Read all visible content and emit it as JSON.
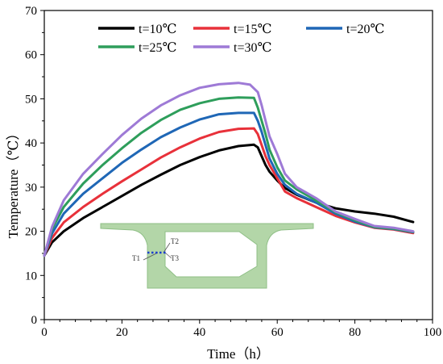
{
  "chart_data": {
    "type": "line",
    "title": "",
    "xlabel": "Time（h）",
    "ylabel": "Temperature（℃）",
    "xlim": [
      0,
      100
    ],
    "ylim": [
      0,
      70
    ],
    "xticks": [
      0,
      20,
      40,
      60,
      80,
      100
    ],
    "yticks": [
      0,
      10,
      20,
      30,
      40,
      50,
      60,
      70
    ],
    "grid": false,
    "legend_position": "top",
    "series": [
      {
        "name": "t=10℃",
        "color": "#000000",
        "x": [
          0,
          2,
          5,
          10,
          15,
          20,
          25,
          30,
          35,
          40,
          45,
          50,
          54,
          55,
          56,
          57,
          58,
          60,
          62,
          65,
          70,
          75,
          80,
          85,
          90,
          95
        ],
        "y": [
          14.5,
          17.5,
          20.0,
          23.0,
          25.5,
          28.0,
          30.5,
          32.8,
          35.0,
          36.8,
          38.3,
          39.3,
          39.6,
          39.0,
          37.0,
          35.0,
          33.5,
          31.5,
          29.8,
          28.3,
          26.5,
          25.2,
          24.5,
          24.0,
          23.3,
          22.1
        ]
      },
      {
        "name": "t=15℃",
        "color": "#e8313a",
        "x": [
          0,
          2,
          5,
          10,
          15,
          20,
          25,
          30,
          35,
          40,
          45,
          50,
          54,
          55,
          56,
          57,
          58,
          60,
          62,
          65,
          70,
          75,
          80,
          85,
          90,
          95
        ],
        "y": [
          14.5,
          18.5,
          22.0,
          25.5,
          28.5,
          31.3,
          34.0,
          36.7,
          39.0,
          41.0,
          42.5,
          43.2,
          43.3,
          42.0,
          39.5,
          37.0,
          35.0,
          32.0,
          29.0,
          27.5,
          25.5,
          23.5,
          22.0,
          20.8,
          20.4,
          19.6
        ]
      },
      {
        "name": "t=20℃",
        "color": "#1f67b6",
        "x": [
          0,
          2,
          5,
          10,
          15,
          20,
          25,
          30,
          35,
          40,
          45,
          50,
          54,
          55,
          56,
          57,
          58,
          60,
          62,
          65,
          70,
          75,
          80,
          85,
          90,
          95
        ],
        "y": [
          14.5,
          19.5,
          24.0,
          28.5,
          32.0,
          35.5,
          38.5,
          41.3,
          43.5,
          45.3,
          46.5,
          46.8,
          46.8,
          45.0,
          42.5,
          39.5,
          36.5,
          33.0,
          30.5,
          28.5,
          26.5,
          24.0,
          22.2,
          20.9,
          20.5,
          19.8
        ]
      },
      {
        "name": "t=25℃",
        "color": "#2e9e5b",
        "x": [
          0,
          2,
          5,
          10,
          15,
          20,
          25,
          30,
          35,
          40,
          45,
          50,
          54,
          55,
          56,
          57,
          58,
          60,
          62,
          65,
          70,
          75,
          80,
          85,
          90,
          95
        ],
        "y": [
          14.5,
          20.5,
          25.5,
          30.8,
          35.0,
          38.8,
          42.3,
          45.2,
          47.5,
          49.0,
          50.0,
          50.3,
          50.2,
          48.0,
          45.0,
          42.0,
          38.5,
          34.5,
          31.5,
          29.5,
          27.0,
          24.3,
          22.5,
          21.0,
          20.6,
          19.9
        ]
      },
      {
        "name": "t=30℃",
        "color": "#9e7ad6",
        "x": [
          0,
          2,
          5,
          10,
          15,
          20,
          25,
          30,
          35,
          40,
          45,
          50,
          53,
          55,
          56,
          57,
          58,
          60,
          62,
          65,
          70,
          75,
          80,
          85,
          90,
          95
        ],
        "y": [
          14.5,
          21.0,
          27.0,
          33.0,
          37.5,
          41.8,
          45.5,
          48.5,
          50.8,
          52.5,
          53.3,
          53.6,
          53.2,
          51.5,
          48.5,
          45.0,
          41.5,
          37.5,
          33.0,
          30.0,
          27.5,
          24.5,
          22.8,
          21.2,
          20.8,
          20.0
        ]
      }
    ],
    "inset": {
      "description_labels": [
        "T2",
        "T1",
        "T3"
      ]
    }
  }
}
